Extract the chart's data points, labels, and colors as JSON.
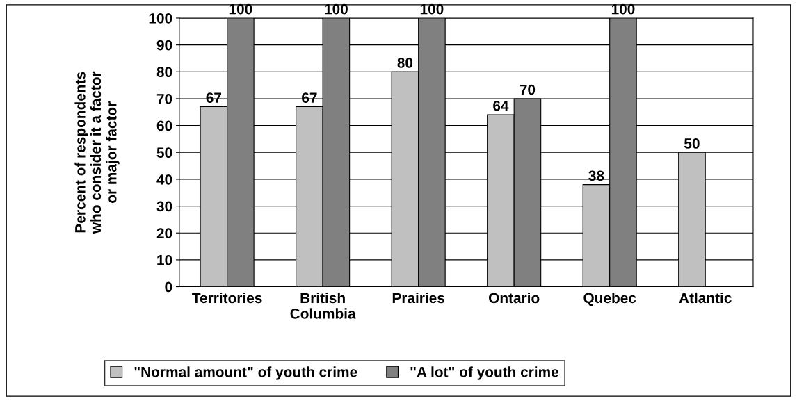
{
  "chart_data": {
    "type": "bar",
    "ylabel": "Percent of respondents\nwho consider it a factor\nor major factor",
    "categories": [
      "Territories",
      "British\nColumbia",
      "Prairies",
      "Ontario",
      "Quebec",
      "Atlantic"
    ],
    "series": [
      {
        "name": "\"Normal amount\" of youth crime",
        "color": "#c0c0c0",
        "values": [
          67,
          67,
          80,
          64,
          38,
          50
        ]
      },
      {
        "name": "\"A lot\" of youth crime",
        "color": "#808080",
        "values": [
          100,
          100,
          100,
          70,
          100,
          null
        ]
      }
    ],
    "ylim": [
      0,
      100
    ],
    "yticks": [
      0,
      10,
      20,
      30,
      40,
      50,
      60,
      70,
      80,
      90,
      100
    ],
    "grid": "y",
    "legend": "bottom",
    "data_labels": true
  }
}
